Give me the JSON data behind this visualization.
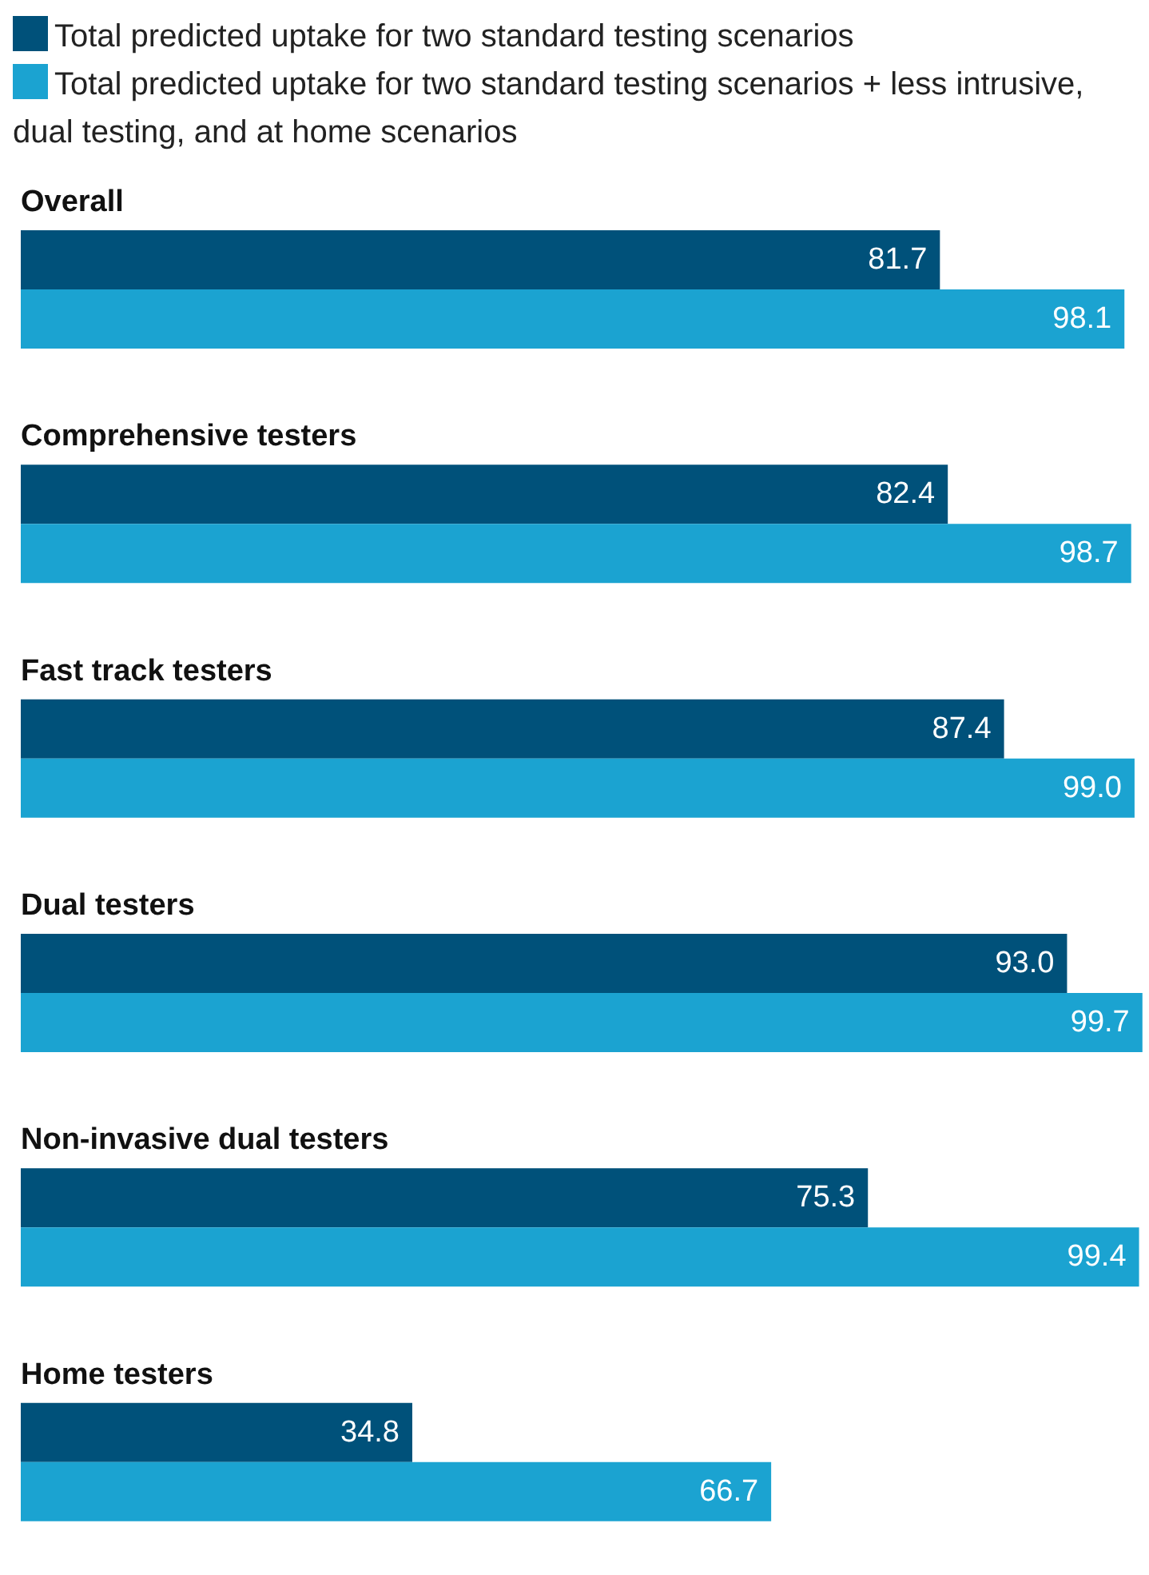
{
  "chart_data": {
    "type": "bar",
    "orientation": "horizontal",
    "categories": [
      "Overall",
      "Comprehensive testers",
      "Fast track testers",
      "Dual testers",
      "Non-invasive dual testers",
      "Home testers"
    ],
    "series": [
      {
        "name": "Total predicted uptake for two standard testing scenarios",
        "color": "#00517a",
        "values": [
          81.7,
          82.4,
          87.4,
          93.0,
          75.3,
          34.8
        ],
        "value_labels": [
          "81.7",
          "82.4",
          "87.4",
          "93.0",
          "75.3",
          "34.8"
        ]
      },
      {
        "name": "Total predicted uptake for two standard testing scenarios + less intrusive, dual testing, and at home scenarios",
        "color": "#1ba3d1",
        "values": [
          98.1,
          98.7,
          99.0,
          99.7,
          99.4,
          66.7
        ],
        "value_labels": [
          "98.1",
          "98.7",
          "99.0",
          "99.7",
          "99.4",
          "66.7"
        ]
      }
    ],
    "legend": "top",
    "grid": false
  }
}
